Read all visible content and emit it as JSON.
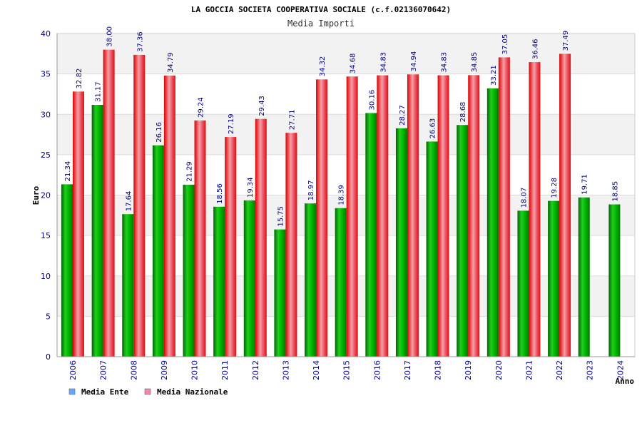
{
  "chart_data": {
    "type": "bar",
    "title": "LA GOCCIA SOCIETA COOPERATIVA SOCIALE (c.f.02136070642)",
    "subtitle": "Media Importi",
    "xlabel": "Anno",
    "ylabel": "Euro",
    "ylim": [
      0,
      40
    ],
    "yticks": [
      0,
      5,
      10,
      15,
      20,
      25,
      30,
      35,
      40
    ],
    "categories": [
      "2006",
      "2007",
      "2008",
      "2009",
      "2010",
      "2011",
      "2012",
      "2013",
      "2014",
      "2015",
      "2016",
      "2017",
      "2018",
      "2019",
      "2020",
      "2021",
      "2022",
      "2023",
      "2024"
    ],
    "series": [
      {
        "name": "Media Ente",
        "legend_color": "#66aaff",
        "bar_color": "#00aa00",
        "values": [
          21.34,
          31.17,
          17.64,
          26.16,
          21.29,
          18.56,
          19.34,
          15.75,
          18.97,
          18.39,
          30.16,
          28.27,
          26.63,
          28.68,
          33.21,
          18.07,
          19.28,
          19.71,
          18.85
        ],
        "labels": [
          "21.34",
          "31.17",
          "17.64",
          "26.16",
          "21.29",
          "18.56",
          "19.34",
          "15.75",
          "18.97",
          "18.39",
          "30.16",
          "28.27",
          "26.63",
          "28.68",
          "33.21",
          "18.07",
          "19.28",
          "19.71",
          "18.85"
        ]
      },
      {
        "name": "Media Nazionale",
        "legend_color": "#ee88aa",
        "bar_color": "#ee2222",
        "values": [
          32.82,
          38.0,
          37.36,
          34.79,
          29.24,
          27.19,
          29.43,
          27.71,
          34.32,
          34.68,
          34.83,
          34.94,
          34.83,
          34.85,
          37.05,
          36.46,
          37.49,
          null,
          null
        ],
        "labels": [
          "32.82",
          "38.00",
          "37.36",
          "34.79",
          "29.24",
          "27.19",
          "29.43",
          "27.71",
          "34.32",
          "34.68",
          "34.83",
          "34.94",
          "34.83",
          "34.85",
          "37.05",
          "36.46",
          "37.49",
          null,
          null
        ]
      }
    ],
    "grid": true,
    "legend_position": "bottom-left"
  }
}
